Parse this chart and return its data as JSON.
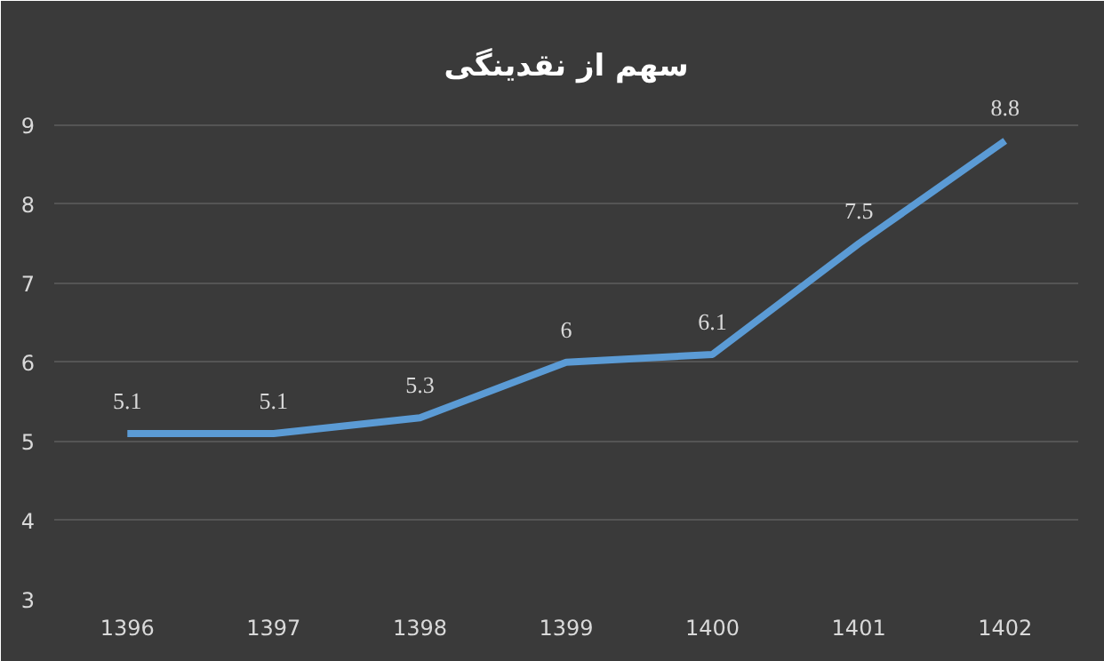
{
  "chart_data": {
    "type": "line",
    "title": "سهم از نقدینگی",
    "categories": [
      "1396",
      "1397",
      "1398",
      "1399",
      "1400",
      "1401",
      "1402"
    ],
    "values": [
      5.1,
      5.1,
      5.3,
      6,
      6.1,
      7.5,
      8.8
    ],
    "color": "#5b9bd5",
    "ylim": [
      3,
      9.4
    ],
    "yticks": [
      3,
      4,
      5,
      6,
      7,
      8,
      9
    ],
    "grid": "y",
    "data_labels": true,
    "marker": "none",
    "line_style": "solid"
  }
}
